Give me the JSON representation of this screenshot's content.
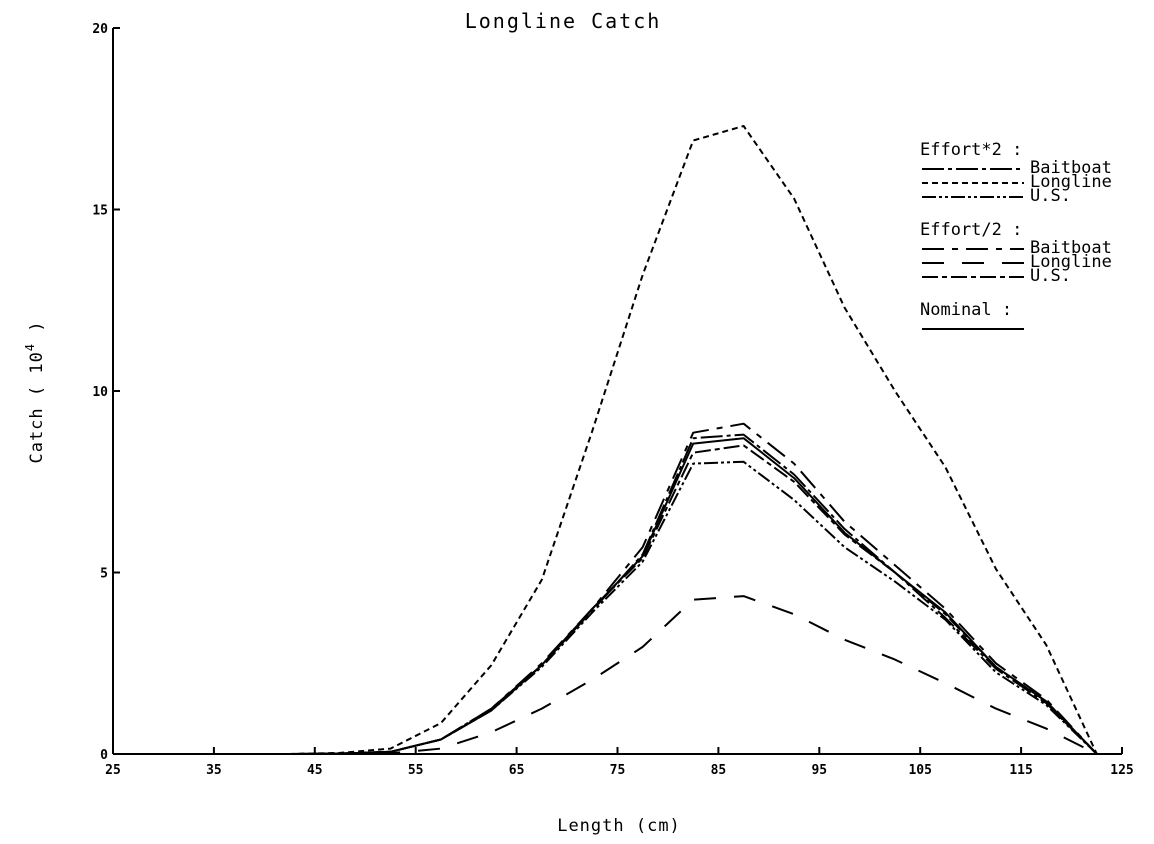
{
  "chart_data": {
    "type": "line",
    "title": "Longline Catch",
    "xlabel": "Length (cm)",
    "ylabel_prefix": "Catch ( 10",
    "ylabel_exponent": "4",
    "ylabel_suffix": " )",
    "xlim": [
      25,
      125
    ],
    "ylim": [
      0,
      20
    ],
    "xticks": [
      25,
      35,
      45,
      55,
      65,
      75,
      85,
      95,
      105,
      115,
      125
    ],
    "yticks": [
      0,
      5,
      10,
      15,
      20
    ],
    "grid": false,
    "legend_placement": "top-right",
    "x": [
      27.5,
      32.5,
      37.5,
      42.5,
      47.5,
      52.5,
      57.5,
      62.5,
      67.5,
      72.5,
      77.5,
      82.5,
      87.5,
      92.5,
      97.5,
      102.5,
      107.5,
      112.5,
      117.5,
      122.5
    ],
    "legend_groups": [
      {
        "label": "Effort*2 :",
        "series": [
          {
            "name": "Baitboat",
            "dash": "22 4 4 4",
            "values": [
              0,
              0,
              0,
              0,
              0.01,
              0.06,
              0.4,
              1.25,
              2.45,
              3.95,
              5.5,
              8.7,
              8.8,
              7.7,
              6.2,
              5.0,
              3.75,
              2.35,
              1.4,
              0
            ]
          },
          {
            "name": "Longline",
            "dash": "6 4",
            "values": [
              0,
              0,
              0,
              0,
              0.03,
              0.15,
              0.85,
              2.45,
              4.8,
              8.9,
              13.2,
              16.9,
              17.3,
              15.3,
              12.3,
              10.0,
              7.9,
              5.1,
              3.0,
              0
            ]
          },
          {
            "name": "U.S.",
            "dash": "14 3 3 3 3 3",
            "values": [
              0,
              0,
              0,
              0,
              0.01,
              0.06,
              0.4,
              1.2,
              2.4,
              3.9,
              5.3,
              8.0,
              8.05,
              7.0,
              5.7,
              4.75,
              3.7,
              2.25,
              1.35,
              0
            ]
          }
        ]
      },
      {
        "label": "Effort/2 :",
        "series": [
          {
            "name": "Baitboat",
            "dash": "22 8 6 8",
            "values": [
              0,
              0,
              0,
              0,
              0.01,
              0.06,
              0.4,
              1.25,
              2.5,
              4.0,
              5.7,
              8.85,
              9.1,
              8.0,
              6.4,
              5.2,
              4.0,
              2.5,
              1.5,
              0
            ]
          },
          {
            "name": "Longline",
            "dash": "22 18",
            "values": [
              0,
              0,
              0,
              0,
              0.0,
              0.02,
              0.15,
              0.6,
              1.25,
              2.05,
              2.95,
              4.25,
              4.35,
              3.85,
              3.15,
              2.6,
              1.95,
              1.25,
              0.7,
              0
            ]
          },
          {
            "name": "U.S.",
            "dash": "16 4 5 4",
            "values": [
              0,
              0,
              0,
              0,
              0.01,
              0.06,
              0.4,
              1.2,
              2.45,
              4.0,
              5.4,
              8.3,
              8.5,
              7.5,
              6.05,
              5.0,
              3.85,
              2.4,
              1.45,
              0
            ]
          }
        ]
      },
      {
        "label": "Nominal :",
        "series": [
          {
            "name": "",
            "dash": "",
            "values": [
              0,
              0,
              0,
              0,
              0.01,
              0.06,
              0.4,
              1.2,
              2.45,
              4.0,
              5.45,
              8.55,
              8.7,
              7.6,
              6.1,
              5.0,
              3.9,
              2.4,
              1.45,
              0
            ]
          }
        ]
      }
    ]
  }
}
